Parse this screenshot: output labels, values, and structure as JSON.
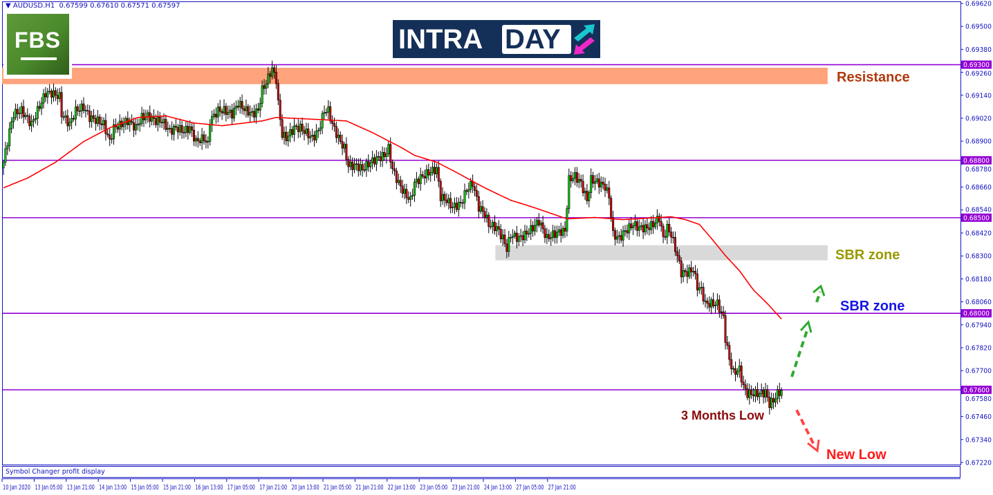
{
  "header": {
    "symbol": "AUDUSD.H1",
    "ohlc": "0.67599 0.67610 0.67571 0.67597"
  },
  "logos": {
    "fbs": "FBS",
    "intraday_a": "INTRA",
    "intraday_b": "DAY"
  },
  "subwindow": {
    "label": "Symbol Changer profit display"
  },
  "colors": {
    "bull": "#00d000",
    "bear": "#d00000",
    "ma": "#ff0000",
    "level": "#9400d3",
    "resistance_zone": "#ffa37c",
    "sbr_zone": "#d9d9d9",
    "axis": "#1010c0"
  },
  "chart_data": {
    "type": "candlestick",
    "timeframe": "H1",
    "ylim": [
      0.6716,
      0.6966
    ],
    "y_ticks": [
      "0.69620",
      "0.69500",
      "0.69380",
      "0.69260",
      "0.69140",
      "0.69020",
      "0.68900",
      "0.68780",
      "0.68660",
      "0.68540",
      "0.68420",
      "0.68300",
      "0.68180",
      "0.68060",
      "0.67940",
      "0.67820",
      "0.67700",
      "0.67580",
      "0.67460",
      "0.67340",
      "0.67220"
    ],
    "x_ticks": [
      "10 Jan 2020",
      "13 Jan 05:00",
      "13 Jan 21:00",
      "14 Jan 13:00",
      "15 Jan 05:00",
      "15 Jan 21:00",
      "16 Jan 13:00",
      "17 Jan 05:00",
      "17 Jan 21:00",
      "20 Jan 13:00",
      "21 Jan 05:00",
      "21 Jan 21:00",
      "22 Jan 13:00",
      "23 Jan 05:00",
      "23 Jan 21:00",
      "24 Jan 13:00",
      "27 Jan 05:00",
      "27 Jan 21:00"
    ],
    "bars_per_x_tick": 16,
    "close_keypoints": [
      [
        0,
        0.6879
      ],
      [
        3,
        0.68952
      ],
      [
        5,
        0.69042
      ],
      [
        9,
        0.6906
      ],
      [
        14,
        0.68988
      ],
      [
        17,
        0.6906
      ],
      [
        21,
        0.69151
      ],
      [
        24,
        0.69151
      ],
      [
        28,
        0.69133
      ],
      [
        29,
        0.69042
      ],
      [
        33,
        0.68988
      ],
      [
        36,
        0.6906
      ],
      [
        40,
        0.69078
      ],
      [
        43,
        0.69024
      ],
      [
        47,
        0.69006
      ],
      [
        50,
        0.68988
      ],
      [
        53,
        0.68898
      ],
      [
        55,
        0.6897
      ],
      [
        59,
        0.68988
      ],
      [
        62,
        0.69006
      ],
      [
        66,
        0.6897
      ],
      [
        69,
        0.69024
      ],
      [
        72,
        0.69032
      ],
      [
        76,
        0.69006
      ],
      [
        79,
        0.69006
      ],
      [
        83,
        0.68952
      ],
      [
        86,
        0.6897
      ],
      [
        90,
        0.68952
      ],
      [
        93,
        0.6897
      ],
      [
        96,
        0.68898
      ],
      [
        100,
        0.68916
      ],
      [
        102,
        0.6888
      ],
      [
        103,
        0.69006
      ],
      [
        107,
        0.6906
      ],
      [
        110,
        0.6906
      ],
      [
        114,
        0.69042
      ],
      [
        117,
        0.69097
      ],
      [
        121,
        0.6906
      ],
      [
        124,
        0.69042
      ],
      [
        127,
        0.6906
      ],
      [
        129,
        0.69169
      ],
      [
        131,
        0.69205
      ],
      [
        133,
        0.69259
      ],
      [
        134,
        0.69277
      ],
      [
        136,
        0.69223
      ],
      [
        137,
        0.69097
      ],
      [
        139,
        0.68934
      ],
      [
        141,
        0.68916
      ],
      [
        145,
        0.6897
      ],
      [
        148,
        0.6897
      ],
      [
        152,
        0.68934
      ],
      [
        154,
        0.68916
      ],
      [
        157,
        0.68952
      ],
      [
        160,
        0.6906
      ],
      [
        162,
        0.6906
      ],
      [
        164,
        0.68988
      ],
      [
        167,
        0.68916
      ],
      [
        170,
        0.68862
      ],
      [
        172,
        0.68772
      ],
      [
        176,
        0.68772
      ],
      [
        179,
        0.68754
      ],
      [
        183,
        0.6879
      ],
      [
        186,
        0.68808
      ],
      [
        190,
        0.68826
      ],
      [
        192,
        0.68862
      ],
      [
        194,
        0.68754
      ],
      [
        197,
        0.68681
      ],
      [
        200,
        0.68627
      ],
      [
        203,
        0.68591
      ],
      [
        205,
        0.68681
      ],
      [
        209,
        0.68717
      ],
      [
        212,
        0.68736
      ],
      [
        216,
        0.68754
      ],
      [
        218,
        0.68609
      ],
      [
        221,
        0.68591
      ],
      [
        224,
        0.68555
      ],
      [
        228,
        0.68573
      ],
      [
        231,
        0.68645
      ],
      [
        234,
        0.68681
      ],
      [
        237,
        0.68555
      ],
      [
        240,
        0.68519
      ],
      [
        242,
        0.68465
      ],
      [
        246,
        0.68447
      ],
      [
        249,
        0.68392
      ],
      [
        251,
        0.68338
      ],
      [
        253,
        0.68411
      ],
      [
        257,
        0.68392
      ],
      [
        260,
        0.68411
      ],
      [
        264,
        0.68447
      ],
      [
        267,
        0.68483
      ],
      [
        271,
        0.68392
      ],
      [
        274,
        0.68411
      ],
      [
        278,
        0.68429
      ],
      [
        280,
        0.68429
      ],
      [
        282,
        0.68699
      ],
      [
        285,
        0.68717
      ],
      [
        288,
        0.68681
      ],
      [
        291,
        0.68591
      ],
      [
        293,
        0.68699
      ],
      [
        297,
        0.68681
      ],
      [
        300,
        0.68663
      ],
      [
        302,
        0.68609
      ],
      [
        304,
        0.68411
      ],
      [
        307,
        0.68392
      ],
      [
        310,
        0.68429
      ],
      [
        314,
        0.68465
      ],
      [
        317,
        0.68447
      ],
      [
        321,
        0.68447
      ],
      [
        324,
        0.68465
      ],
      [
        327,
        0.68501
      ],
      [
        329,
        0.68392
      ],
      [
        331,
        0.68447
      ],
      [
        333,
        0.68411
      ],
      [
        336,
        0.68302
      ],
      [
        338,
        0.68212
      ],
      [
        341,
        0.68212
      ],
      [
        344,
        0.6823
      ],
      [
        346,
        0.6814
      ],
      [
        348,
        0.68122
      ],
      [
        350,
        0.6805
      ],
      [
        353,
        0.6805
      ],
      [
        356,
        0.6805
      ],
      [
        359,
        0.67977
      ],
      [
        360,
        0.67869
      ],
      [
        362,
        0.6776
      ],
      [
        364,
        0.67689
      ],
      [
        367,
        0.67707
      ],
      [
        369,
        0.67616
      ],
      [
        371,
        0.6758
      ],
      [
        374,
        0.6758
      ],
      [
        378,
        0.6758
      ],
      [
        380,
        0.67588
      ],
      [
        382,
        0.67526
      ],
      [
        384,
        0.67544
      ],
      [
        386,
        0.6758
      ],
      [
        388,
        0.67597
      ]
    ],
    "ma_keypoints": [
      [
        0,
        0.68656
      ],
      [
        12,
        0.68707
      ],
      [
        26,
        0.6879
      ],
      [
        40,
        0.68898
      ],
      [
        53,
        0.6897
      ],
      [
        67,
        0.69024
      ],
      [
        81,
        0.69032
      ],
      [
        95,
        0.68995
      ],
      [
        109,
        0.68981
      ],
      [
        129,
        0.69006
      ],
      [
        136,
        0.69024
      ],
      [
        150,
        0.69017
      ],
      [
        171,
        0.69006
      ],
      [
        184,
        0.68945
      ],
      [
        198,
        0.68869
      ],
      [
        205,
        0.68826
      ],
      [
        216,
        0.6879
      ],
      [
        226,
        0.68736
      ],
      [
        240,
        0.68656
      ],
      [
        253,
        0.68591
      ],
      [
        264,
        0.68555
      ],
      [
        274,
        0.68519
      ],
      [
        281,
        0.68494
      ],
      [
        295,
        0.68501
      ],
      [
        309,
        0.6849
      ],
      [
        333,
        0.68505
      ],
      [
        340,
        0.6849
      ],
      [
        347,
        0.68465
      ],
      [
        353,
        0.68392
      ],
      [
        360,
        0.68302
      ],
      [
        367,
        0.68223
      ],
      [
        374,
        0.68122
      ],
      [
        381,
        0.6805
      ],
      [
        388,
        0.6797
      ]
    ],
    "levels": [
      {
        "price": 0.693,
        "label": "0.69300"
      },
      {
        "price": 0.688,
        "label": "0.68800"
      },
      {
        "price": 0.685,
        "label": "0.68500"
      },
      {
        "price": 0.68,
        "label": "0.68000"
      },
      {
        "price": 0.676,
        "label": "0.67600"
      }
    ],
    "zones": [
      {
        "name": "resistance",
        "from": 0.69198,
        "to": 0.69284,
        "bar_start": 0,
        "bar_end": 411
      },
      {
        "name": "sbr",
        "from": 0.68277,
        "to": 0.68356,
        "bar_start": 246,
        "bar_end": 411
      }
    ],
    "annotations": {
      "resistance": {
        "text": "Resistance",
        "color": "#b03a0c"
      },
      "sbr_upper": {
        "text": "SBR zone",
        "color": "#9a9a00"
      },
      "sbr_lower": {
        "text": "SBR zone",
        "color": "#1414e6"
      },
      "three_months_low": {
        "text": "3 Months Low",
        "color": "#8b0a0a"
      },
      "new_low": {
        "text": "New Low",
        "color": "#ff1a1a"
      }
    }
  }
}
